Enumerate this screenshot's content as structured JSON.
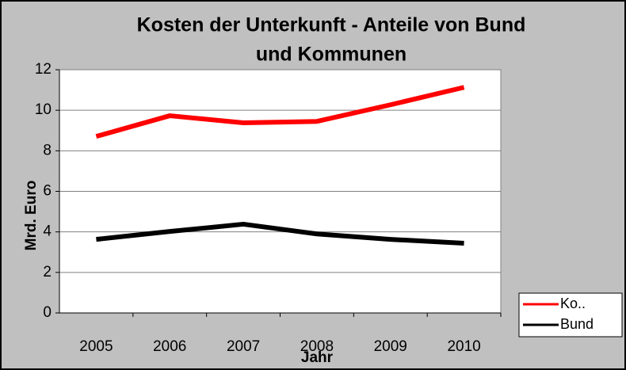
{
  "chart_data": {
    "type": "line",
    "title": [
      "Kosten der Unterkunft - Anteile von Bund",
      "und Kommunen"
    ],
    "x_label": "Jahr",
    "y_label": "Mrd. Euro",
    "categories": [
      "2005",
      "2006",
      "2007",
      "2008",
      "2009",
      "2010"
    ],
    "series": [
      {
        "name": "Ko..",
        "color": "#ff0000",
        "values": [
          8.71,
          9.73,
          9.38,
          9.45,
          10.27,
          11.13
        ]
      },
      {
        "name": "Bund",
        "color": "#000000",
        "values": [
          3.63,
          4.02,
          4.38,
          3.9,
          3.63,
          3.44
        ]
      }
    ],
    "ylim": [
      0,
      12
    ],
    "yticks": [
      0,
      2,
      4,
      6,
      8,
      10,
      12
    ],
    "grid": true,
    "legend": "bottom-right"
  }
}
